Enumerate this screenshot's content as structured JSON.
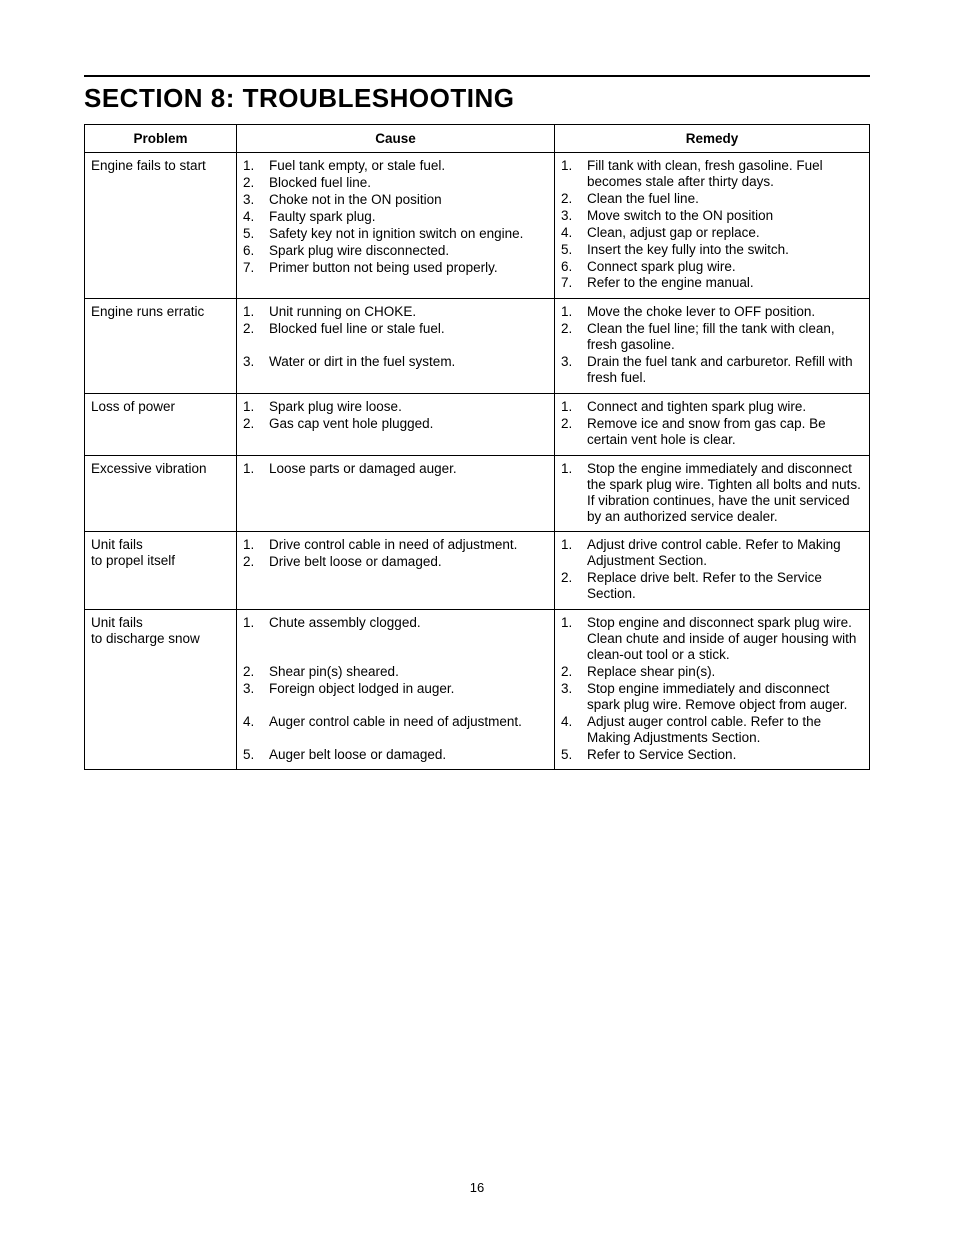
{
  "page_number": "16",
  "title": "SECTION 8:  TROUBLESHOOTING",
  "columns": {
    "problem": "Problem",
    "cause": "Cause",
    "remedy": "Remedy"
  },
  "rows": [
    {
      "problem": "Engine fails to start",
      "causes": [
        "Fuel tank empty, or stale fuel.",
        "Blocked fuel line.",
        "Choke not in the ON position",
        "Faulty spark plug.",
        "Safety key not in ignition switch on engine.",
        "Spark plug wire disconnected.",
        "Primer button not being used properly."
      ],
      "remedies": [
        "Fill tank with clean, fresh gasoline. Fuel becomes stale after thirty days.",
        "Clean the fuel line.",
        "Move switch to the ON position",
        "Clean, adjust gap or replace.",
        "Insert the key fully into the switch.",
        "Connect spark plug wire.",
        "Refer to the engine manual."
      ]
    },
    {
      "problem": "Engine runs erratic",
      "causes": [
        "Unit running on CHOKE.",
        "Blocked fuel line or stale fuel.",
        "Water or dirt in the fuel system."
      ],
      "remedies": [
        "Move the choke lever to OFF position.",
        "Clean the fuel line; fill the tank with clean, fresh gasoline.",
        "Drain the fuel tank and carburetor. Refill with fresh fuel."
      ]
    },
    {
      "problem": "Loss of power",
      "causes": [
        "Spark plug wire loose.",
        "Gas cap vent hole plugged."
      ],
      "remedies": [
        "Connect and tighten spark plug wire.",
        "Remove ice and snow from gas cap. Be certain vent hole is clear."
      ]
    },
    {
      "problem": "Excessive vibration",
      "causes": [
        "Loose parts or damaged auger."
      ],
      "remedies": [
        "Stop the engine immediately and disconnect the spark plug wire. Tighten all bolts and nuts. If vibration continues, have the unit serviced by an authorized service dealer."
      ]
    },
    {
      "problem": "Unit fails\nto propel itself",
      "causes": [
        "Drive control cable in need of adjustment.",
        "Drive belt loose or damaged."
      ],
      "remedies": [
        "Adjust drive control cable. Refer to Making Adjustment Section.",
        "Replace drive belt. Refer to the Service Section."
      ]
    },
    {
      "problem": "Unit fails\nto discharge snow",
      "causes": [
        "Chute assembly clogged.",
        "Shear pin(s) sheared.",
        "Foreign object lodged in auger.",
        "Auger control cable in need of adjustment.",
        "Auger belt loose or damaged."
      ],
      "remedies": [
        "Stop engine and disconnect spark plug wire. Clean chute and inside of auger housing with clean-out tool or a stick.",
        "Replace shear pin(s).",
        "Stop engine immediately and disconnect spark plug wire. Remove object from auger.",
        "Adjust auger control cable. Refer to the Making Adjustments Section.",
        "Refer to Service Section."
      ]
    }
  ]
}
